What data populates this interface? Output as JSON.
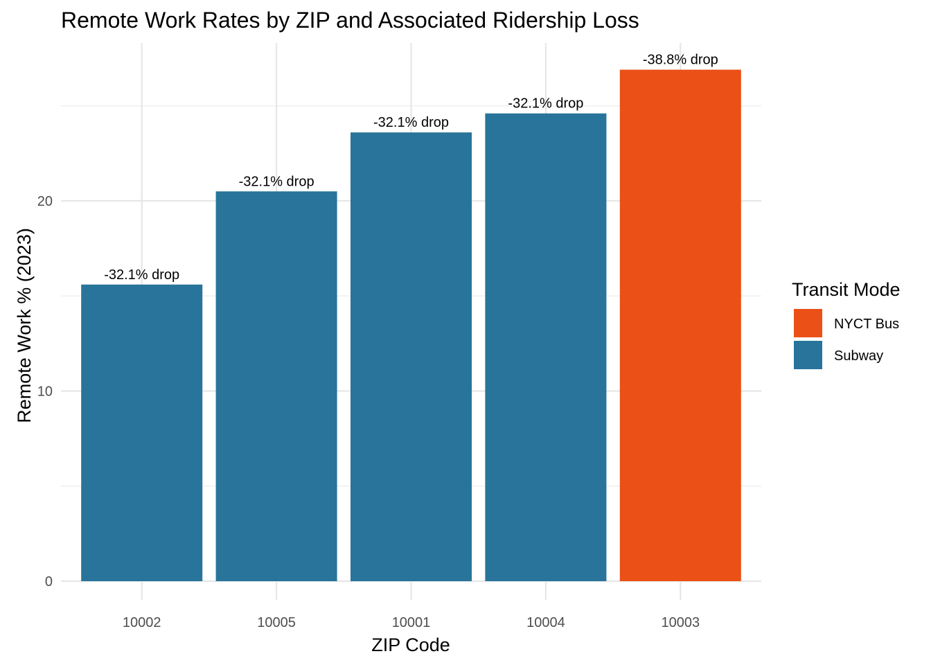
{
  "chart_data": {
    "type": "bar",
    "title": "Remote Work Rates by ZIP and Associated Ridership Loss",
    "xlabel": "ZIP Code",
    "ylabel": "Remote Work % (2023)",
    "categories": [
      "10002",
      "10005",
      "10001",
      "10004",
      "10003"
    ],
    "values": [
      15.6,
      20.5,
      23.6,
      24.6,
      26.9
    ],
    "modes": [
      "Subway",
      "Subway",
      "Subway",
      "Subway",
      "NYCT Bus"
    ],
    "data_labels": [
      "-32.1% drop",
      "-32.1% drop",
      "-32.1% drop",
      "-32.1% drop",
      "-38.8% drop"
    ],
    "ylim": [
      0,
      28
    ],
    "y_ticks": [
      0,
      10,
      20
    ],
    "y_minor_ticks": [
      5,
      15,
      25
    ],
    "grid": true,
    "legend": {
      "title": "Transit Mode",
      "placement": "right",
      "entries": [
        {
          "label": "NYCT Bus",
          "color": "#EB5017"
        },
        {
          "label": "Subway",
          "color": "#28749A"
        }
      ]
    },
    "colors": {
      "Subway": "#28749A",
      "NYCT Bus": "#EB5017"
    }
  }
}
